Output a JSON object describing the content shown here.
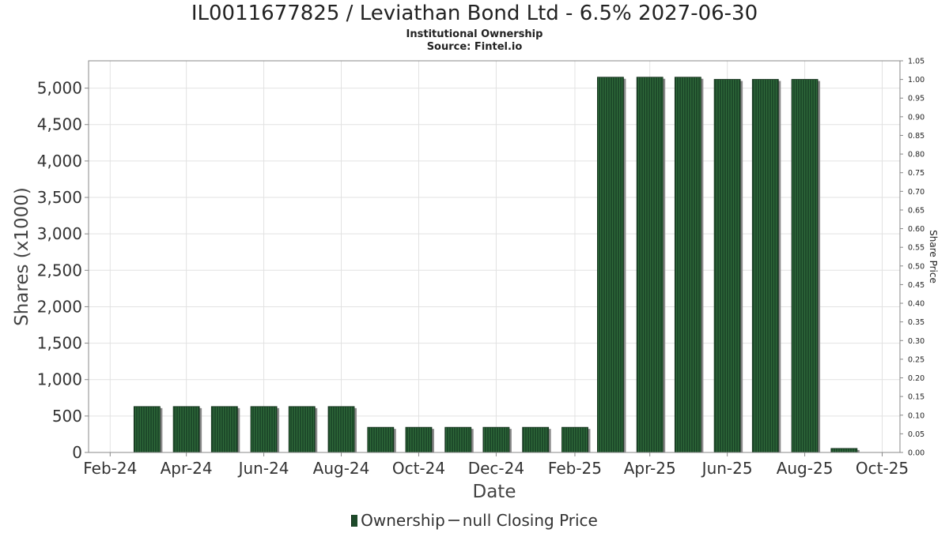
{
  "title": "IL0011677825 / Leviathan Bond Ltd - 6.5% 2027-06-30",
  "subtitle1": "Institutional Ownership",
  "subtitle2": "Source: Fintel.io",
  "legend": {
    "ownership": "Ownership",
    "price": "null Closing Price"
  },
  "colors": {
    "bar": "#1d4a2a",
    "bar_stripe": "#2f6a3a",
    "shadow": "#8a8a8a",
    "grid": "#e2e2e2"
  },
  "chart_data": {
    "type": "bar",
    "xlabel": "Date",
    "ylabel": "Shares (x1000)",
    "y2label": "Share Price",
    "ylim": [
      0,
      5375
    ],
    "y2lim": [
      0,
      1.05
    ],
    "yticks": [
      "0",
      "500",
      "1,000",
      "1,500",
      "2,000",
      "2,500",
      "3,000",
      "3,500",
      "4,000",
      "4,500",
      "5,000"
    ],
    "y2ticks": [
      "0.00",
      "0.05",
      "0.10",
      "0.15",
      "0.20",
      "0.25",
      "0.30",
      "0.35",
      "0.40",
      "0.45",
      "0.50",
      "0.55",
      "0.60",
      "0.65",
      "0.70",
      "0.75",
      "0.80",
      "0.85",
      "0.90",
      "0.95",
      "1.00",
      "1.05"
    ],
    "xticks": [
      "Feb-24",
      "Apr-24",
      "Jun-24",
      "Aug-24",
      "Oct-24",
      "Dec-24",
      "Feb-25",
      "Apr-25",
      "Jun-25",
      "Aug-25",
      "Oct-25"
    ],
    "xtick_dates": [
      "2024-02-01",
      "2024-04-01",
      "2024-06-01",
      "2024-08-01",
      "2024-10-01",
      "2024-12-01",
      "2025-02-01",
      "2025-04-01",
      "2025-06-01",
      "2025-08-01",
      "2025-10-01"
    ],
    "xlim": [
      "2024-01-15",
      "2025-10-15"
    ],
    "series": [
      {
        "name": "Ownership",
        "x": [
          "2024-03-01",
          "2024-04-01",
          "2024-05-01",
          "2024-06-01",
          "2024-07-01",
          "2024-08-01",
          "2024-09-01",
          "2024-10-01",
          "2024-11-01",
          "2024-12-01",
          "2025-01-01",
          "2025-02-01",
          "2025-03-01",
          "2025-04-01",
          "2025-05-01",
          "2025-06-01",
          "2025-07-01",
          "2025-08-01",
          "2025-09-01"
        ],
        "values": [
          630,
          630,
          630,
          630,
          630,
          630,
          345,
          345,
          345,
          345,
          345,
          345,
          5150,
          5150,
          5150,
          5120,
          5120,
          5120,
          55
        ]
      }
    ]
  }
}
